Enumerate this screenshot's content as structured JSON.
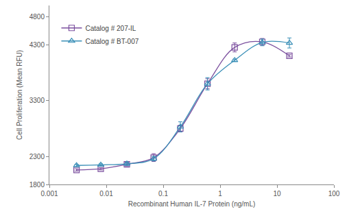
{
  "chart_data": {
    "type": "scatter",
    "x_label": "Recombinant Human IL-7 Protein (ng/mL)",
    "y_label": "Cell Proliferation (Mean RFU)",
    "log": "x",
    "grid": false,
    "legend": "upper left",
    "xlim": [
      0.001,
      100
    ],
    "xticks": [
      0.001,
      0.01,
      0.1,
      1,
      10,
      100
    ],
    "ylim": [
      1800,
      5000
    ],
    "yticks": [
      1800,
      2300,
      3300,
      4300,
      4800
    ],
    "x": [
      0.003,
      0.008,
      0.023,
      0.068,
      0.2,
      0.6,
      1.8,
      5.5,
      16.5
    ],
    "series": [
      {
        "name": "Catalog # 207-IL",
        "color": "#7b4f9e",
        "marker": "square-open",
        "line_style": "solid",
        "values": [
          2060,
          2080,
          2160,
          2280,
          2800,
          3600,
          4250,
          4350,
          4100
        ],
        "error": [
          20,
          20,
          30,
          70,
          60,
          90,
          80,
          60,
          20
        ]
      },
      {
        "name": "Catalog # BT-007",
        "color": "#3a8fb7",
        "marker": "triangle-up-open",
        "line_style": "solid",
        "values": [
          2140,
          2150,
          2170,
          2260,
          2830,
          3600,
          4020,
          4340,
          4330
        ],
        "error": [
          20,
          20,
          30,
          40,
          90,
          110,
          20,
          60,
          90
        ]
      }
    ]
  }
}
